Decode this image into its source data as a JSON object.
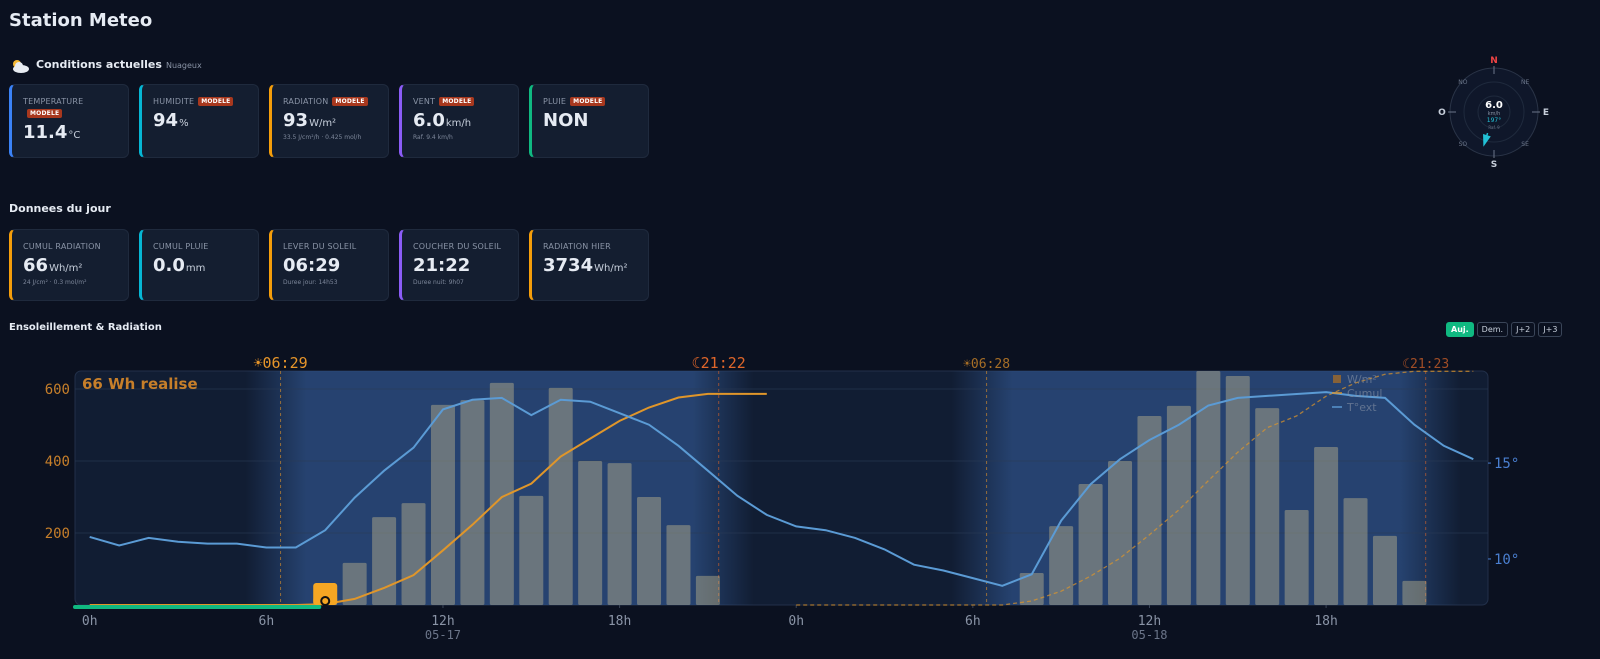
{
  "header": {
    "title": "Station Meteo"
  },
  "current": {
    "title": "Conditions actuelles",
    "subtitle": "Nuageux",
    "cards": [
      {
        "label": "TEMPERATURE",
        "badge": "MODELE",
        "value": "11.4",
        "unit": "°C",
        "accent": "#3b82f6"
      },
      {
        "label": "HUMIDITE",
        "badge": "MODELE",
        "value": "94",
        "unit": "%",
        "accent": "#06b6d4"
      },
      {
        "label": "RADIATION",
        "badge": "MODELE",
        "value": "93",
        "unit": "W/m²",
        "sub": "33.5 J/cm²/h · 0.425 mol/h",
        "accent": "#f59e0b"
      },
      {
        "label": "VENT",
        "badge": "MODELE",
        "value": "6.0",
        "unit": "km/h",
        "sub": "Raf. 9.4 km/h",
        "accent": "#8b5cf6"
      },
      {
        "label": "PLUIE",
        "badge": "MODELE",
        "value": "NON",
        "accent": "#10b981"
      }
    ]
  },
  "compass": {
    "directions": [
      "N",
      "NE",
      "E",
      "SE",
      "S",
      "SO",
      "O",
      "NO"
    ],
    "speed": "6.0",
    "unit": "km/h",
    "direction": {
      "value": 197,
      "label": "197°"
    },
    "gust": "Raf. 9"
  },
  "daily": {
    "title": "Donnees du jour",
    "cards": [
      {
        "label": "CUMUL RADIATION",
        "value": "66",
        "unit": "Wh/m²",
        "sub": "24 J/cm² · 0.3 mol/m²",
        "accent": "#f59e0b"
      },
      {
        "label": "CUMUL PLUIE",
        "value": "0.0",
        "unit": "mm",
        "accent": "#06b6d4"
      },
      {
        "label": "LEVER DU SOLEIL",
        "value": "06:29",
        "sub": "Duree jour: 14h53",
        "accent": "#f59e0b"
      },
      {
        "label": "COUCHER DU SOLEIL",
        "value": "21:22",
        "sub": "Duree nuit: 9h07",
        "accent": "#8b5cf6"
      },
      {
        "label": "RADIATION HIER",
        "value": "3734",
        "unit": "Wh/m²",
        "accent": "#f59e0b"
      }
    ]
  },
  "chart_section": {
    "title": "Ensoleillement & Radiation",
    "buttons": [
      "Auj.",
      "Dem.",
      "J+2",
      "J+3"
    ],
    "active_button": 0
  },
  "chart_data": {
    "type": "bar",
    "annotation": "66 Wh realise",
    "x": [
      0,
      1,
      2,
      3,
      4,
      5,
      6,
      7,
      8,
      9,
      10,
      11,
      12,
      13,
      14,
      15,
      16,
      17,
      18,
      19,
      20,
      21,
      22,
      23,
      24,
      25,
      26,
      27,
      28,
      29,
      30,
      31,
      32,
      33,
      34,
      35,
      36,
      37,
      38,
      39,
      40,
      41,
      42,
      43,
      44,
      45,
      46,
      47
    ],
    "series": [
      {
        "name": "W/m²",
        "type": "bar",
        "color": "#c9bd8f",
        "values": [
          0,
          0,
          0,
          0,
          0,
          0,
          0,
          0,
          20,
          117,
          244,
          283,
          556,
          569,
          617,
          303,
          603,
          400,
          394,
          300,
          222,
          81,
          0,
          0,
          0,
          0,
          0,
          0,
          0,
          0,
          0,
          0,
          89,
          219,
          336,
          400,
          525,
          553,
          650,
          636,
          547,
          264,
          439,
          297,
          192,
          67,
          0,
          0
        ]
      },
      {
        "name": "Cumul",
        "type": "line",
        "axis": "y3",
        "color": "#e0962a",
        "dashed_from": 24,
        "values": [
          0,
          0,
          0,
          0,
          0,
          0,
          0,
          0,
          20,
          137,
          381,
          664,
          1220,
          1789,
          2406,
          2709,
          3312,
          3712,
          4106,
          4406,
          4628,
          4709,
          4709,
          4709,
          0,
          0,
          0,
          0,
          0,
          0,
          0,
          0,
          89,
          308,
          644,
          1044,
          1569,
          2122,
          2772,
          3408,
          3955,
          4219,
          4658,
          4955,
          5147,
          5214,
          5214,
          5214
        ]
      },
      {
        "name": "T°ext",
        "type": "line",
        "axis": "y2",
        "color": "#5b9bd5",
        "values": [
          11.15,
          10.7,
          11.1,
          10.9,
          10.8,
          10.8,
          10.6,
          10.6,
          11.5,
          13.2,
          14.6,
          15.8,
          17.8,
          18.3,
          18.4,
          17.5,
          18.3,
          18.2,
          17.6,
          17.0,
          15.9,
          14.6,
          13.3,
          12.3,
          11.7,
          11.5,
          11.1,
          10.5,
          9.7,
          9.4,
          9.0,
          8.6,
          9.2,
          12.0,
          13.9,
          15.2,
          16.2,
          17.0,
          18.0,
          18.4,
          18.5,
          18.6,
          18.7,
          18.5,
          18.4,
          17.0,
          15.9,
          15.2
        ]
      }
    ],
    "xlim": [
      -0.5,
      47.5
    ],
    "xticks": [
      {
        "value": 0,
        "label": "0h"
      },
      {
        "value": 6,
        "label": "6h"
      },
      {
        "value": 12,
        "label": "12h"
      },
      {
        "value": 18,
        "label": "18h"
      },
      {
        "value": 24,
        "label": "0h"
      },
      {
        "value": 30,
        "label": "6h"
      },
      {
        "value": 36,
        "label": "12h"
      },
      {
        "value": 42,
        "label": "18h"
      }
    ],
    "date_labels": [
      {
        "value": 12,
        "label": "05-17"
      },
      {
        "value": 36,
        "label": "05-18"
      }
    ],
    "ylim": [
      0,
      650
    ],
    "yticks": [
      200,
      400,
      600
    ],
    "y2lim": [
      7.6,
      19.8
    ],
    "y2ticks": [
      {
        "value": 10,
        "label": "10°"
      },
      {
        "value": 15,
        "label": "15°"
      }
    ],
    "y3lim": [
      0,
      5220
    ],
    "sun_events": [
      {
        "x": 6.483,
        "label": "☀06:29",
        "kind": "rise"
      },
      {
        "x": 21.367,
        "label": "☾21:22",
        "kind": "set"
      },
      {
        "x": 30.467,
        "label": "☀06:28",
        "kind": "rise"
      },
      {
        "x": 45.383,
        "label": "☾21:23",
        "kind": "set"
      }
    ],
    "now": 8,
    "grid": true,
    "legend": "top-right"
  }
}
